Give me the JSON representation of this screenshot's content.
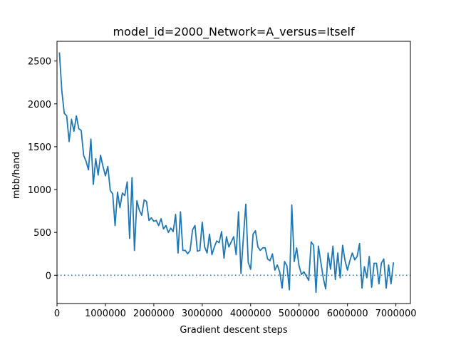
{
  "chart_data": {
    "type": "line",
    "title": "model_id=2000_Network=A_versus=Itself",
    "xlabel": "Gradient descent steps",
    "ylabel": "mbb/hand",
    "xlim": [
      0,
      7300000
    ],
    "ylim": [
      -330,
      2730
    ],
    "xticks": [
      0,
      1000000,
      2000000,
      3000000,
      4000000,
      5000000,
      6000000,
      7000000
    ],
    "xtick_labels": [
      "0",
      "1000000",
      "2000000",
      "3000000",
      "4000000",
      "5000000",
      "6000000",
      "7000000"
    ],
    "yticks": [
      0,
      500,
      1000,
      1500,
      2000,
      2500
    ],
    "ytick_labels": [
      "0",
      "500",
      "1000",
      "1500",
      "2000",
      "2500"
    ],
    "grid": false,
    "series": [
      {
        "color": "#1f77b4",
        "style": "solid",
        "x": [
          50000,
          100000,
          150000,
          200000,
          250000,
          300000,
          350000,
          400000,
          450000,
          500000,
          550000,
          600000,
          650000,
          700000,
          750000,
          800000,
          850000,
          900000,
          950000,
          1000000,
          1050000,
          1100000,
          1150000,
          1200000,
          1250000,
          1300000,
          1350000,
          1400000,
          1450000,
          1500000,
          1550000,
          1600000,
          1650000,
          1700000,
          1750000,
          1800000,
          1850000,
          1900000,
          1950000,
          2000000,
          2050000,
          2100000,
          2150000,
          2200000,
          2250000,
          2300000,
          2350000,
          2400000,
          2450000,
          2500000,
          2550000,
          2600000,
          2650000,
          2700000,
          2750000,
          2800000,
          2850000,
          2900000,
          2950000,
          3000000,
          3050000,
          3100000,
          3150000,
          3200000,
          3250000,
          3300000,
          3350000,
          3400000,
          3450000,
          3500000,
          3550000,
          3600000,
          3650000,
          3700000,
          3750000,
          3800000,
          3850000,
          3900000,
          3950000,
          4000000,
          4050000,
          4100000,
          4150000,
          4200000,
          4250000,
          4300000,
          4350000,
          4400000,
          4450000,
          4500000,
          4550000,
          4600000,
          4650000,
          4700000,
          4750000,
          4800000,
          4850000,
          4900000,
          4950000,
          5000000,
          5050000,
          5100000,
          5150000,
          5200000,
          5250000,
          5300000,
          5350000,
          5400000,
          5450000,
          5500000,
          5550000,
          5600000,
          5650000,
          5700000,
          5750000,
          5800000,
          5850000,
          5900000,
          5950000,
          6000000,
          6050000,
          6100000,
          6150000,
          6200000,
          6250000,
          6300000,
          6350000,
          6400000,
          6450000,
          6500000,
          6550000,
          6600000,
          6650000,
          6700000,
          6750000,
          6800000,
          6850000,
          6900000,
          6950000
        ],
        "y": [
          2600,
          2150,
          1890,
          1860,
          1560,
          1820,
          1680,
          1860,
          1710,
          1690,
          1400,
          1330,
          1230,
          1590,
          1060,
          1360,
          1170,
          1400,
          1270,
          1160,
          1270,
          990,
          950,
          580,
          970,
          790,
          960,
          930,
          1090,
          430,
          1140,
          290,
          870,
          760,
          700,
          880,
          860,
          640,
          670,
          630,
          640,
          580,
          660,
          540,
          580,
          500,
          550,
          510,
          710,
          260,
          740,
          290,
          290,
          250,
          290,
          530,
          580,
          280,
          290,
          620,
          330,
          260,
          480,
          240,
          330,
          400,
          380,
          510,
          200,
          450,
          330,
          390,
          450,
          240,
          740,
          20,
          440,
          830,
          150,
          70,
          480,
          520,
          330,
          290,
          320,
          320,
          190,
          170,
          250,
          60,
          120,
          40,
          -150,
          160,
          110,
          -170,
          820,
          160,
          320,
          110,
          10,
          40,
          -10,
          -60,
          390,
          350,
          -200,
          340,
          150,
          -30,
          -160,
          260,
          70,
          340,
          -50,
          260,
          -30,
          350,
          170,
          60,
          170,
          260,
          180,
          220,
          370,
          -150,
          100,
          -30,
          220,
          -140,
          140,
          140,
          -100,
          140,
          190,
          -150,
          120,
          -100,
          150
        ]
      },
      {
        "color": "#1f77b4",
        "style": "dotted",
        "x": [
          0,
          7300000
        ],
        "y": [
          0,
          0
        ]
      }
    ]
  }
}
